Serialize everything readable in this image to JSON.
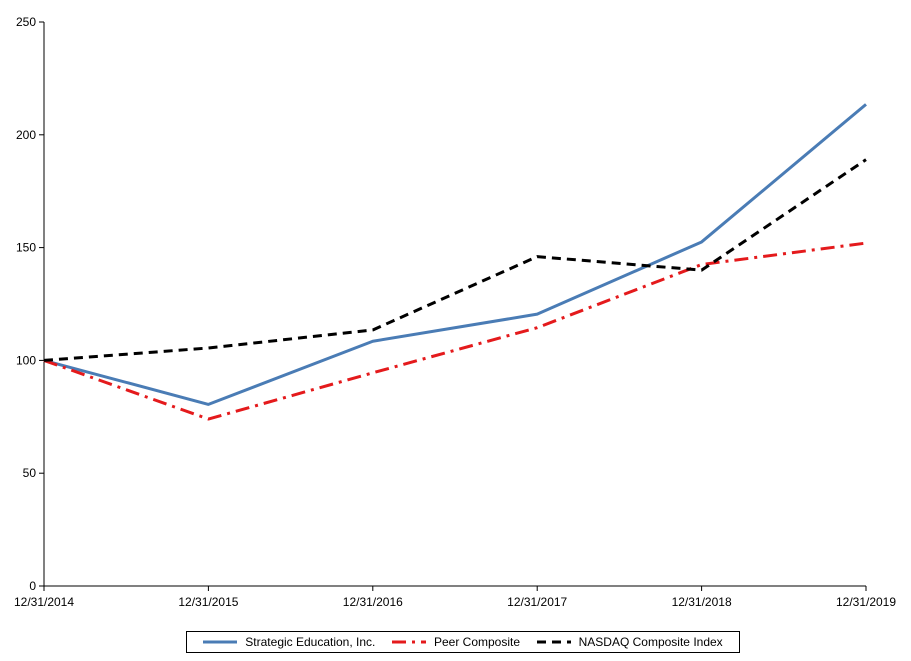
{
  "chart_data": {
    "type": "line",
    "title": "",
    "xlabel": "",
    "ylabel": "",
    "categories": [
      "12/31/2014",
      "12/31/2015",
      "12/31/2016",
      "12/31/2017",
      "12/31/2018",
      "12/31/2019"
    ],
    "ylim": [
      0,
      250
    ],
    "yticks": [
      0,
      50,
      100,
      150,
      200,
      250
    ],
    "ytick_labels": [
      "0",
      "50",
      "100",
      "150",
      "200",
      "250"
    ],
    "grid": false,
    "legend_position": "bottom",
    "series": [
      {
        "name": "Strategic Education, Inc.",
        "values": [
          100,
          80.5,
          108.5,
          120.5,
          152.5,
          213.5
        ],
        "color": "#4a7cb5",
        "style": "solid"
      },
      {
        "name": "Peer Composite",
        "values": [
          100,
          74,
          94.5,
          114.5,
          142.5,
          152
        ],
        "color": "#e41a1c",
        "style": "dash-dot"
      },
      {
        "name": "NASDAQ Composite Index",
        "values": [
          100,
          105.5,
          113.5,
          146,
          140,
          189
        ],
        "color": "#000000",
        "style": "dashed"
      }
    ]
  }
}
